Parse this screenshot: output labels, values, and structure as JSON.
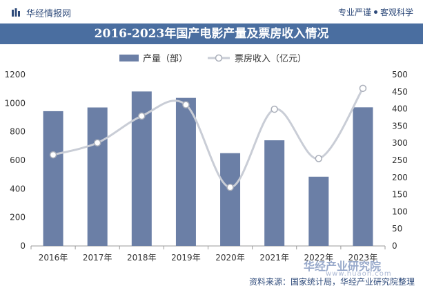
{
  "header": {
    "brand": "华经情报网",
    "slogan_left": "专业严谨",
    "slogan_right": "客观科学",
    "logo_icon": "bar-logo-icon"
  },
  "chart_data": {
    "type": "bar",
    "title": "2016-2023年国产电影产量及票房收入情况",
    "categories": [
      "2016年",
      "2017年",
      "2018年",
      "2019年",
      "2020年",
      "2021年",
      "2022年",
      "2023年"
    ],
    "series": [
      {
        "name": "产量（部）",
        "type": "bar",
        "axis": "left",
        "color": "#6b7fa6",
        "values": [
          944,
          970,
          1082,
          1037,
          650,
          740,
          485,
          971
        ]
      },
      {
        "name": "票房收入（亿元）",
        "type": "line",
        "axis": "right",
        "color": "#c9cdd6",
        "values": [
          266,
          301,
          379,
          412,
          171,
          399,
          255,
          460
        ]
      }
    ],
    "y_left": {
      "min": 0,
      "max": 1200,
      "ticks": [
        0,
        200,
        400,
        600,
        800,
        1000,
        1200
      ]
    },
    "y_right": {
      "min": 0,
      "max": 500,
      "ticks": [
        0,
        50,
        100,
        150,
        200,
        250,
        300,
        350,
        400,
        450,
        500
      ]
    },
    "legend_position": "top-center",
    "grid": false
  },
  "footer": {
    "source": "资料来源：国家统计局，华经产业研究院整理",
    "watermark_logo": "华经产业研究院",
    "watermark_url": "www.huaon.com"
  }
}
